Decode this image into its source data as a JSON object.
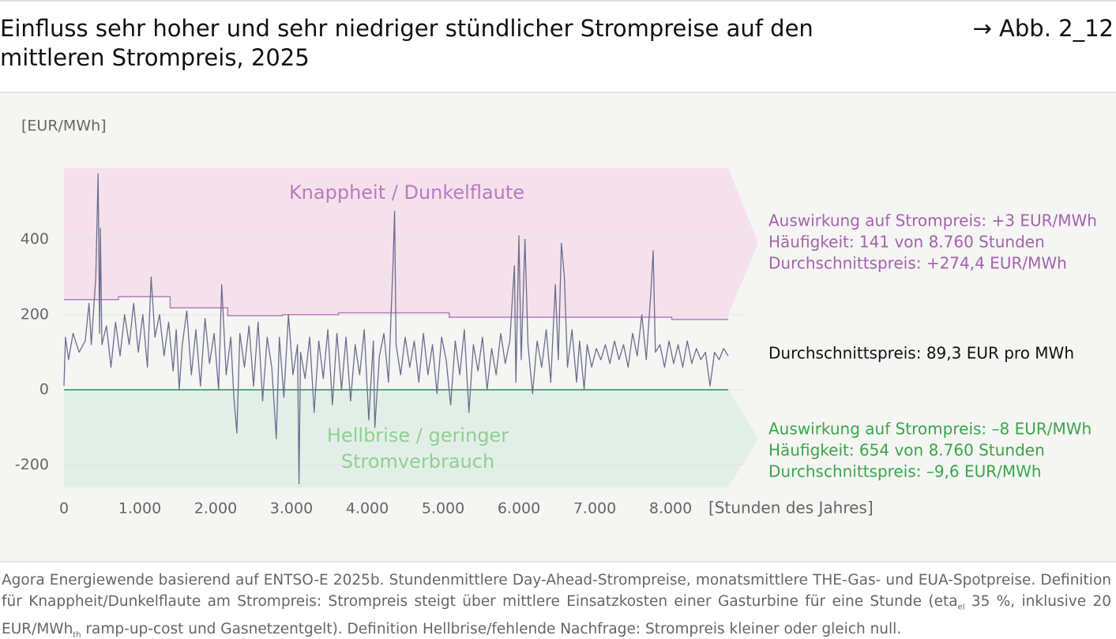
{
  "header": {
    "title_lines": [
      "Einfluss sehr hoher und sehr niedriger stündlicher Strompreise auf den",
      "mittleren Strompreis, 2025"
    ],
    "figure_ref": "→ Abb. 2_12"
  },
  "chart_data": {
    "type": "line",
    "y_unit": "[EUR/MWh]",
    "x_label": "[Stunden des Jahres]",
    "xlim": [
      0,
      8760
    ],
    "ylim": [
      -260,
      590
    ],
    "xticks": [
      0,
      {
        "value": 1000,
        "label": "1.000"
      },
      {
        "value": 2000,
        "label": "2.000"
      },
      {
        "value": 3000,
        "label": "3.000"
      },
      {
        "value": 4000,
        "label": "4.000"
      },
      {
        "value": 5000,
        "label": "5.000"
      },
      {
        "value": 6000,
        "label": "6.000"
      },
      {
        "value": 7000,
        "label": "7.000"
      },
      {
        "value": 8000,
        "label": "8.000"
      }
    ],
    "yticks": [
      -200,
      0,
      200,
      400
    ],
    "grid": true,
    "series": [
      {
        "color": "#6b6e8e",
        "x": [
          0,
          20,
          60,
          120,
          200,
          280,
          330,
          360,
          420,
          450,
          470,
          480,
          500,
          560,
          620,
          680,
          740,
          800,
          860,
          920,
          980,
          1040,
          1100,
          1150,
          1200,
          1260,
          1320,
          1380,
          1440,
          1480,
          1520,
          1560,
          1620,
          1680,
          1740,
          1800,
          1860,
          1920,
          1980,
          2040,
          2080,
          2140,
          2200,
          2240,
          2280,
          2320,
          2380,
          2440,
          2500,
          2560,
          2620,
          2680,
          2740,
          2800,
          2840,
          2900,
          2960,
          3020,
          3080,
          3100,
          3120,
          3180,
          3240,
          3300,
          3360,
          3420,
          3480,
          3540,
          3600,
          3660,
          3720,
          3780,
          3840,
          3900,
          3960,
          4020,
          4080,
          4100,
          4160,
          4220,
          4280,
          4340,
          4360,
          4380,
          4440,
          4500,
          4560,
          4620,
          4680,
          4740,
          4800,
          4860,
          4920,
          4980,
          5040,
          5100,
          5160,
          5220,
          5280,
          5340,
          5400,
          5460,
          5520,
          5580,
          5640,
          5700,
          5760,
          5820,
          5880,
          5940,
          5960,
          6000,
          6030,
          6080,
          6120,
          6180,
          6240,
          6300,
          6360,
          6420,
          6480,
          6520,
          6560,
          6600,
          6640,
          6700,
          6760,
          6800,
          6860,
          6900,
          6960,
          7020,
          7080,
          7140,
          7200,
          7260,
          7320,
          7380,
          7440,
          7500,
          7560,
          7620,
          7680,
          7740,
          7770,
          7800,
          7860,
          7920,
          7980,
          8040,
          8100,
          8160,
          8220,
          8280,
          8340,
          8400,
          8460,
          8520,
          8580,
          8640,
          8700,
          8760
        ],
        "values": [
          10,
          140,
          80,
          150,
          100,
          130,
          230,
          120,
          300,
          575,
          150,
          430,
          120,
          170,
          60,
          180,
          90,
          200,
          120,
          230,
          100,
          200,
          60,
          300,
          140,
          200,
          90,
          180,
          50,
          160,
          0,
          120,
          210,
          40,
          160,
          10,
          190,
          70,
          150,
          0,
          280,
          40,
          140,
          -20,
          -115,
          150,
          60,
          170,
          10,
          180,
          -30,
          140,
          60,
          -130,
          140,
          -20,
          200,
          40,
          120,
          -250,
          100,
          30,
          140,
          -60,
          130,
          30,
          160,
          -40,
          150,
          0,
          140,
          -30,
          120,
          40,
          160,
          -80,
          130,
          -100,
          90,
          150,
          20,
          340,
          475,
          120,
          40,
          140,
          60,
          130,
          20,
          150,
          40,
          120,
          -10,
          140,
          80,
          -40,
          130,
          40,
          160,
          -60,
          120,
          50,
          140,
          0,
          110,
          40,
          150,
          70,
          130,
          330,
          20,
          410,
          80,
          400,
          120,
          -10,
          130,
          60,
          160,
          20,
          280,
          80,
          390,
          300,
          60,
          160,
          20,
          130,
          0,
          120,
          60,
          110,
          80,
          120,
          70,
          130,
          80,
          120,
          60,
          150,
          90,
          200,
          80,
          260,
          370,
          100,
          120,
          60,
          130,
          70,
          120,
          60,
          130,
          70,
          110,
          80,
          100,
          10,
          100,
          80,
          110,
          90
        ]
      }
    ],
    "threshold": {
      "color": "#b77bbf",
      "x": [
        0,
        720,
        1400,
        2160,
        2880,
        3620,
        4340,
        5080,
        5832,
        6552,
        7296,
        8016
      ],
      "values": [
        240,
        248,
        218,
        197,
        200,
        205,
        205,
        193,
        193,
        193,
        193,
        187
      ]
    },
    "region_labels": {
      "high": "Knappheit / Dunkelflaute",
      "low_lines": [
        "Hellbrise / geringer",
        "Stromverbrauch"
      ]
    },
    "annotations": {
      "high": [
        "Auswirkung auf Strompreis: +3 EUR/MWh",
        "Häufigkeit: 141 von 8.760 Stunden",
        "Durchschnittspreis: +274,4 EUR/MWh"
      ],
      "mean": "Durchschnittspreis: 89,3 EUR pro MWh",
      "low": [
        "Auswirkung auf Strompreis: –8 EUR/MWh",
        "Häufigkeit: 654 von 8.760 Stunden",
        "Durchschnittspreis: –9,6 EUR/MWh"
      ]
    }
  },
  "footnote": {
    "parts": [
      "Agora Energiewende basierend auf ENTSO-E 2025b. Stundenmittlere Day-Ahead-Strompreise, monatsmittlere THE-Gas- und EUA-Spotpreise. Definition für Knappheit/Dunkelflaute am Strompreis: Strompreis steigt über mittlere Einsatzkosten einer Gasturbine für eine Stunde (eta",
      "el",
      " 35 %, inklusive 20 EUR/MWh",
      "th",
      " ramp-up-cost und Gasnetzentgelt). Definition Hellbrise/fehlende Nachfrage: Strompreis kleiner oder gleich null."
    ]
  }
}
